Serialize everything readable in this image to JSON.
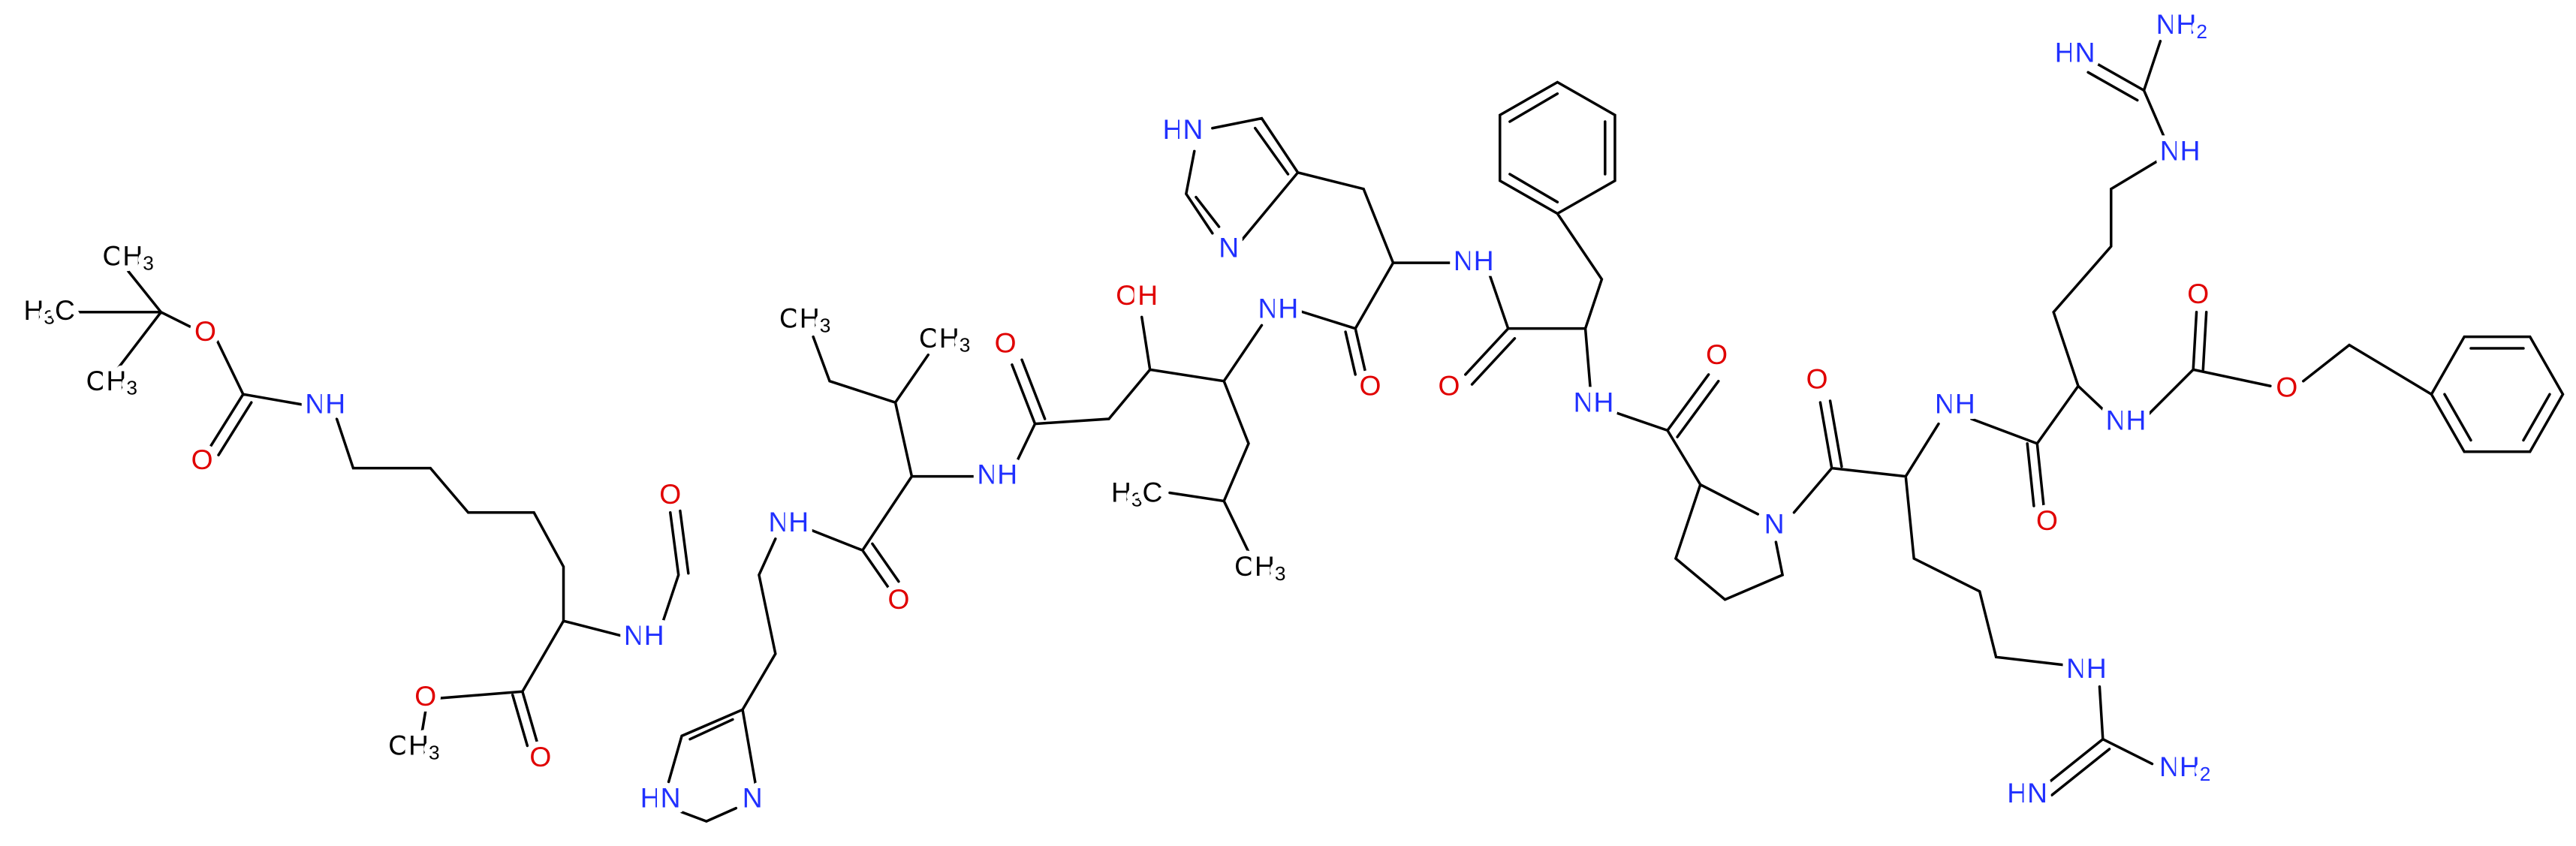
{
  "labels": [
    "CH3",
    "H3C",
    "CH3",
    "O",
    "O",
    "NH",
    "O",
    "NH",
    "O",
    "CH3",
    "O",
    "HN",
    "N",
    "NH",
    "O",
    "CH3",
    "CH3",
    "NH",
    "O",
    "OH",
    "NH",
    "H3C",
    "CH3",
    "HN",
    "N",
    "O",
    "NH",
    "O",
    "NH",
    "O",
    "N",
    "O",
    "NH",
    "NH",
    "HN",
    "NH2",
    "NH2",
    "HN",
    "NH",
    "O",
    "NH",
    "O",
    "O"
  ]
}
